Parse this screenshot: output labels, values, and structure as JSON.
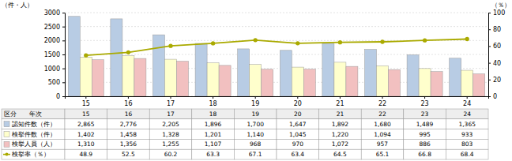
{
  "chart_data": {
    "type": "bar",
    "categories": [
      "15",
      "16",
      "17",
      "18",
      "19",
      "20",
      "21",
      "22",
      "23",
      "24"
    ],
    "series": [
      {
        "name": "認知件数（件）",
        "color": "#b8cce4",
        "values": [
          2865,
          2776,
          2205,
          1896,
          1700,
          1647,
          1892,
          1680,
          1489,
          1365
        ],
        "value_labels": [
          "2,865",
          "2,776",
          "2,205",
          "1,896",
          "1,700",
          "1,647",
          "1,892",
          "1,680",
          "1,489",
          "1,365"
        ]
      },
      {
        "name": "検挙件数（件）",
        "color": "#ffffcc",
        "values": [
          1402,
          1458,
          1328,
          1201,
          1140,
          1045,
          1220,
          1094,
          995,
          933
        ],
        "value_labels": [
          "1,402",
          "1,458",
          "1,328",
          "1,201",
          "1,140",
          "1,045",
          "1,220",
          "1,094",
          "995",
          "933"
        ]
      },
      {
        "name": "検挙人員（人）",
        "color": "#f2c0c0",
        "values": [
          1310,
          1356,
          1255,
          1107,
          968,
          970,
          1072,
          957,
          886,
          803
        ],
        "value_labels": [
          "1,310",
          "1,356",
          "1,255",
          "1,107",
          "968",
          "970",
          "1,072",
          "957",
          "886",
          "803"
        ]
      },
      {
        "name": "検挙率（％）",
        "type": "line",
        "axis": "y2",
        "color": "#aaaa00",
        "marker": "circle",
        "values": [
          48.9,
          52.5,
          60.2,
          63.3,
          67.1,
          63.4,
          64.5,
          65.1,
          66.8,
          68.4
        ]
      }
    ],
    "ylim": [
      0,
      3000
    ],
    "yticks": [
      0,
      500,
      1000,
      1500,
      2000,
      2500,
      3000
    ],
    "y2lim": [
      0,
      100
    ],
    "y2ticks": [
      0,
      20,
      40,
      60,
      80,
      100
    ],
    "ylabel": "（件・人）",
    "y2label": "（％）",
    "grid": true,
    "table_header": "区分　　年次"
  }
}
